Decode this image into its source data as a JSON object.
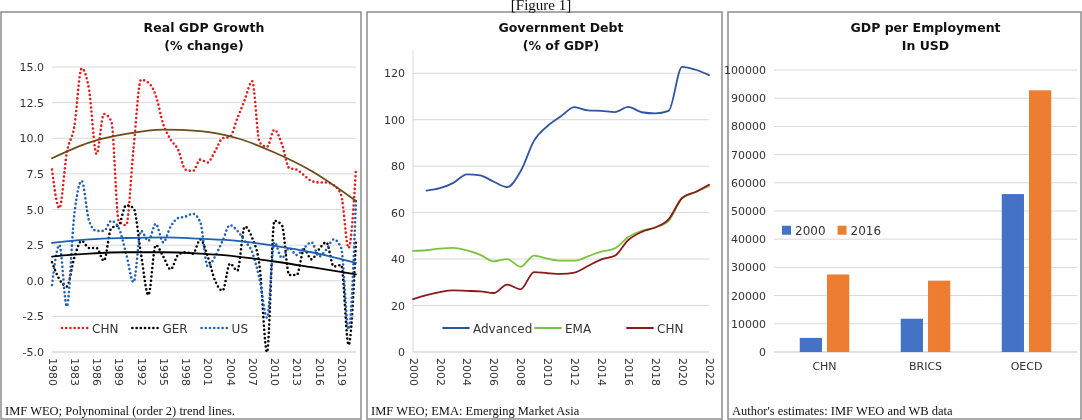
{
  "chart_data": [
    {
      "type": "line",
      "title": "Real GDP Growth\n(% change)",
      "x": [
        1980,
        1981,
        1982,
        1983,
        1984,
        1985,
        1986,
        1987,
        1988,
        1989,
        1990,
        1991,
        1992,
        1993,
        1994,
        1995,
        1996,
        1997,
        1998,
        1999,
        2000,
        2001,
        2002,
        2003,
        2004,
        2005,
        2006,
        2007,
        2008,
        2009,
        2010,
        2011,
        2012,
        2013,
        2014,
        2015,
        2016,
        2017,
        2018,
        2019,
        2020,
        2021
      ],
      "series": [
        {
          "name": "CHN",
          "color": "#e41a1c",
          "line_style": "dotted",
          "values": [
            7.8,
            5.1,
            9.0,
            10.8,
            14.9,
            13.4,
            8.9,
            11.7,
            11.2,
            4.2,
            3.9,
            9.3,
            14.1,
            13.9,
            13.0,
            11.0,
            9.9,
            9.2,
            7.8,
            7.7,
            8.5,
            8.3,
            9.1,
            10.0,
            10.1,
            11.4,
            12.7,
            14.0,
            9.7,
            9.4,
            10.6,
            9.6,
            7.9,
            7.8,
            7.4,
            7.0,
            6.9,
            6.9,
            6.7,
            6.0,
            2.3,
            7.9
          ]
        },
        {
          "name": "GER",
          "color": "#000000",
          "line_style": "dotted",
          "values": [
            1.3,
            0.1,
            -0.4,
            1.6,
            2.8,
            2.3,
            2.3,
            1.4,
            3.7,
            3.9,
            5.3,
            5.1,
            1.9,
            -1.0,
            2.5,
            1.7,
            0.8,
            1.8,
            2.0,
            1.9,
            2.9,
            1.7,
            0.0,
            -0.7,
            1.2,
            0.7,
            3.8,
            3.0,
            1.0,
            -5.0,
            4.2,
            3.9,
            0.4,
            0.4,
            2.2,
            1.5,
            2.2,
            2.7,
            1.0,
            1.1,
            -4.5,
            2.9
          ]
        },
        {
          "name": "US",
          "color": "#1f5fb4",
          "line_style": "dotted",
          "values": [
            -0.3,
            2.5,
            -1.8,
            4.6,
            7.0,
            4.2,
            3.5,
            3.5,
            4.2,
            3.7,
            1.9,
            -0.1,
            3.5,
            2.8,
            4.0,
            2.7,
            3.8,
            4.4,
            4.5,
            4.7,
            4.1,
            1.0,
            1.7,
            2.8,
            3.9,
            3.5,
            2.8,
            2.0,
            0.1,
            -2.6,
            2.7,
            1.6,
            2.3,
            1.8,
            2.3,
            2.7,
            1.7,
            2.2,
            2.9,
            2.3,
            -3.4,
            5.7
          ]
        },
        {
          "color": "#6b4c17",
          "line_style": "solid",
          "x": [
            1980,
            1985,
            1990,
            1995,
            2000,
            2005,
            2010,
            2015,
            2021
          ],
          "values": [
            8.6,
            9.7,
            10.3,
            10.6,
            10.5,
            10.0,
            9.0,
            7.7,
            5.6
          ]
        },
        {
          "color": "#000000",
          "line_style": "solid",
          "x": [
            1980,
            1985,
            1990,
            1995,
            2000,
            2005,
            2010,
            2015,
            2021
          ],
          "values": [
            1.7,
            1.9,
            2.0,
            2.0,
            1.9,
            1.7,
            1.35,
            0.95,
            0.45
          ]
        },
        {
          "color": "#1f5fb4",
          "line_style": "solid",
          "x": [
            1980,
            1985,
            1990,
            1995,
            2000,
            2005,
            2010,
            2015,
            2021
          ],
          "values": [
            2.65,
            2.9,
            3.0,
            3.05,
            2.95,
            2.8,
            2.45,
            2.0,
            1.25
          ]
        }
      ],
      "xlim": [
        1980,
        2021
      ],
      "xticks": [
        1980,
        1983,
        1986,
        1989,
        1992,
        1995,
        1998,
        2001,
        2004,
        2007,
        2010,
        2013,
        2016,
        2019
      ],
      "ylim": [
        -5,
        15
      ],
      "yticks": [
        {
          "value": -5,
          "label": "-5.0"
        },
        {
          "value": -2.5,
          "label": "-2.5"
        },
        {
          "value": 0,
          "label": "0.0"
        },
        {
          "value": 2.5,
          "label": "2.5"
        },
        {
          "value": 5,
          "label": "5.0"
        },
        {
          "value": 7.5,
          "label": "7.5"
        },
        {
          "value": 10,
          "label": "10.0"
        },
        {
          "value": 12.5,
          "label": "12.5"
        },
        {
          "value": 15,
          "label": "15.0"
        }
      ],
      "grid": "y",
      "legend": "bottom left",
      "marker": "none",
      "annotations": [
        "IMF WEO; Polynominal (order 2) trend lines."
      ]
    },
    {
      "type": "line",
      "title": "Government Debt\n(% of GDP)",
      "x": [
        2000,
        2001,
        2002,
        2003,
        2004,
        2005,
        2006,
        2007,
        2008,
        2009,
        2010,
        2011,
        2012,
        2013,
        2014,
        2015,
        2016,
        2017,
        2018,
        2019,
        2020,
        2021,
        2022
      ],
      "series": [
        {
          "name": "Advanced",
          "color": "#2e55a4",
          "values": [
            null,
            69.5,
            70.5,
            72.8,
            76.5,
            76.0,
            73.3,
            71.0,
            77.8,
            91.0,
            97.3,
            101.5,
            105.4,
            104.0,
            103.8,
            103.3,
            105.5,
            103.2,
            102.7,
            103.8,
            122.7,
            121.5,
            119.2
          ]
        },
        {
          "name": "EMA",
          "color": "#7cc242",
          "values": [
            43.5,
            43.8,
            44.5,
            44.8,
            43.7,
            41.8,
            39.0,
            40.0,
            36.7,
            41.5,
            40.2,
            39.3,
            39.3,
            41.2,
            43.2,
            44.6,
            49.5,
            52.2,
            53.6,
            56.5,
            66.2,
            68.8,
            71.5
          ]
        },
        {
          "name": "CHN",
          "color": "#8b1a1a",
          "values": [
            22.8,
            24.5,
            25.8,
            26.5,
            26.3,
            26.1,
            25.4,
            29.0,
            27.0,
            34.4,
            33.9,
            33.6,
            34.2,
            37.0,
            39.9,
            41.4,
            48.2,
            51.7,
            53.6,
            57.1,
            66.3,
            68.9,
            72.0
          ]
        }
      ],
      "xlim": [
        2000,
        2022
      ],
      "xticks": [
        2000,
        2002,
        2004,
        2006,
        2008,
        2010,
        2012,
        2014,
        2016,
        2018,
        2020,
        2022
      ],
      "ylim": [
        0,
        130
      ],
      "yticks": [
        0,
        20,
        40,
        60,
        80,
        100,
        120
      ],
      "grid": "y",
      "legend": "bottom",
      "marker": "none",
      "line_style": "solid",
      "annotations": [
        "IMF WEO; EMA: Emerging Market Asia",
        "[Figure 1]"
      ]
    },
    {
      "type": "bar",
      "title": "GDP per Employment\nIn USD",
      "categories": [
        "CHN",
        "BRICS",
        "OECD"
      ],
      "series": [
        {
          "name": "2000",
          "color": "#4472c4",
          "values": [
            5000,
            11800,
            56000
          ]
        },
        {
          "name": "2016",
          "color": "#ed7d31",
          "values": [
            27500,
            25300,
            92800
          ]
        }
      ],
      "ylim": [
        0,
        100000
      ],
      "yticks": [
        0,
        10000,
        20000,
        30000,
        40000,
        50000,
        60000,
        70000,
        80000,
        90000,
        100000
      ],
      "grid": "y",
      "legend": "left",
      "annotations": [
        "Author's estimates: IMF WEO and WB data"
      ]
    }
  ]
}
